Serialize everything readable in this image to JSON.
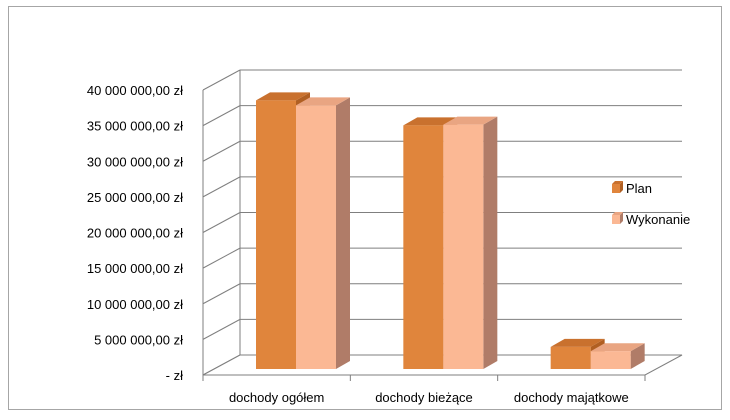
{
  "chart_data": {
    "type": "bar",
    "title": "",
    "xlabel": "",
    "ylabel": "",
    "categories": [
      "dochody ogółem",
      "dochody bieżące",
      "dochody majątkowe"
    ],
    "series": [
      {
        "name": "Plan",
        "values": [
          37700000,
          34200000,
          3100000
        ],
        "color": "#e0853c",
        "color_top": "#c9712e",
        "color_side": "#b05f22"
      },
      {
        "name": "Wykonanie",
        "values": [
          37000000,
          34300000,
          2500000
        ],
        "color": "#fbb894",
        "color_top": "#e9a582",
        "color_side": "#b07c68"
      }
    ],
    "ylim": [
      0,
      40000000
    ],
    "yticks": [
      {
        "value": 0,
        "label": "-   zł"
      },
      {
        "value": 5000000,
        "label": "5 000 000,00 zł"
      },
      {
        "value": 10000000,
        "label": "10 000 000,00 zł"
      },
      {
        "value": 15000000,
        "label": "15 000 000,00 zł"
      },
      {
        "value": 20000000,
        "label": "20 000 000,00 zł"
      },
      {
        "value": 25000000,
        "label": "25 000 000,00 zł"
      },
      {
        "value": 30000000,
        "label": "30 000 000,00 zł"
      },
      {
        "value": 35000000,
        "label": "35 000 000,00 zł"
      },
      {
        "value": 40000000,
        "label": "40 000 000,00 zł"
      }
    ],
    "grid": true,
    "legend_position": "right",
    "style": "3d-clustered-column",
    "grid_color": "#7f7f7f",
    "floor_color": "#ffffff"
  }
}
